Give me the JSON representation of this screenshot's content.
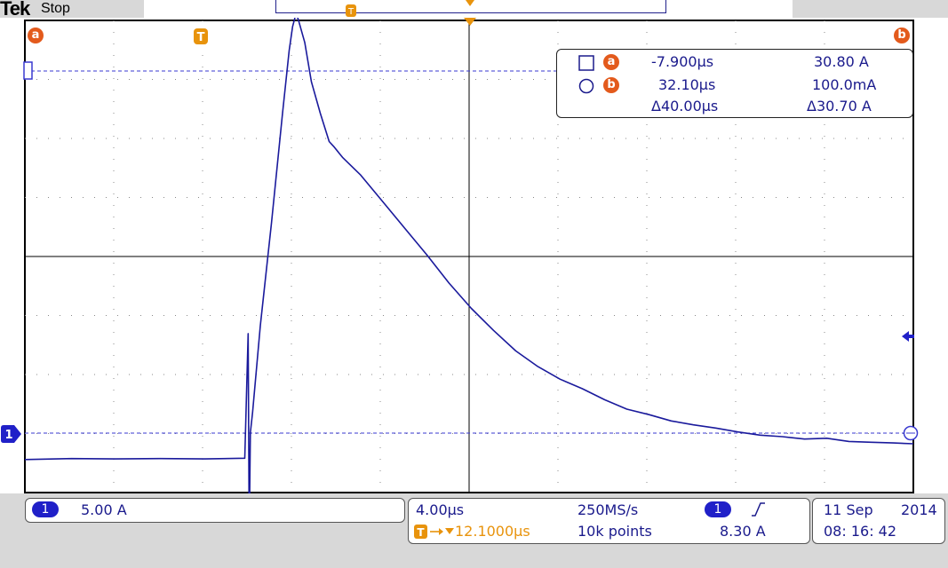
{
  "header": {
    "brand": "Tek",
    "status": "Stop"
  },
  "markers": {
    "cursor_a": "a",
    "cursor_b": "b",
    "trigger": "T",
    "channel": "1"
  },
  "cursor_readout": {
    "a_time": "-7.900µs",
    "a_value": "30.80 A",
    "b_time": "32.10µs",
    "b_value": "100.0mA",
    "delta_time": "Δ40.00µs",
    "delta_value": "Δ30.70 A"
  },
  "channel_panel": {
    "channel": "1",
    "scale": "5.00 A"
  },
  "timebase_panel": {
    "time_per_div": "4.00µs",
    "sample_rate": "250MS/s",
    "trigger_position": "12.1000µs",
    "record_length": "10k points",
    "trigger_channel": "1",
    "trigger_slope": "rising-edge-icon",
    "trigger_level": "8.30 A"
  },
  "datetime_panel": {
    "date_day": "11 Sep",
    "date_year": "2014",
    "time": "08: 16: 42"
  },
  "colors": {
    "trace": "#1a1a9c",
    "trigger_marker": "#e8930c",
    "cursor_marker": "#e35a1c",
    "cursor_line": "#3a3ad0"
  },
  "chart_data": {
    "type": "line",
    "x_unit": "µs",
    "y_unit": "A",
    "xlim": [
      -20.1,
      19.9
    ],
    "ylim": [
      -2.1,
      27.9
    ],
    "grid": true,
    "series": [
      {
        "x": [
          -20.1,
          -18,
          -16,
          -14,
          -12,
          -10.2,
          -10.05,
          -10,
          -9.95,
          -9.85,
          -9.5,
          -9,
          -8.5,
          -8.2,
          -8.05,
          -7.9,
          -7.8,
          -7.5,
          -7.2,
          -6.8,
          -6.4,
          -6.2,
          -5.8,
          -5,
          -4,
          -3,
          -2,
          -1,
          0,
          1,
          2,
          3,
          4,
          5,
          6,
          7,
          8,
          9,
          10,
          11,
          12,
          13,
          14,
          15,
          16,
          17,
          18,
          19,
          19.9
        ],
        "y": [
          0,
          0.06,
          0.04,
          0.06,
          0.04,
          0.08,
          8,
          -5,
          1.7,
          3,
          8.5,
          15,
          22,
          26,
          27.5,
          28.3,
          28,
          26.5,
          24,
          22,
          20.2,
          19.9,
          19.2,
          18.1,
          16.4,
          14.7,
          13,
          11.2,
          9.6,
          8.2,
          6.9,
          5.9,
          5.1,
          4.5,
          3.8,
          3.2,
          2.85,
          2.45,
          2.2,
          2,
          1.75,
          1.55,
          1.45,
          1.3,
          1.35,
          1.15,
          1.1,
          1.05,
          1
        ]
      }
    ]
  }
}
